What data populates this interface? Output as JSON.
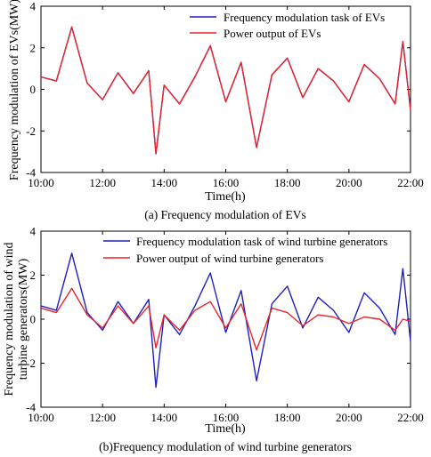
{
  "chart_data": [
    {
      "type": "line",
      "caption": "(a) Frequency modulation of EVs",
      "xlabel": "Time(h)",
      "ylabel": "Frequency modulation of EVs(MW)",
      "x_ticks": [
        "10:00",
        "12:00",
        "14:00",
        "16:00",
        "18:00",
        "20:00",
        "22:00"
      ],
      "xlim": [
        "10:00",
        "22:00"
      ],
      "ylim": [
        -4,
        4
      ],
      "y_ticks": [
        -4,
        -2,
        0,
        2,
        4
      ],
      "grid": false,
      "legend_position": "top-right",
      "series": [
        {
          "name": "Frequency modulation task of EVs",
          "color": "#1f1fbf",
          "x": [
            "10:00",
            "10:30",
            "11:00",
            "11:30",
            "12:00",
            "12:30",
            "13:00",
            "13:30",
            "13:44",
            "14:00",
            "14:30",
            "15:00",
            "15:30",
            "16:00",
            "16:30",
            "17:00",
            "17:30",
            "18:00",
            "18:30",
            "19:00",
            "19:30",
            "20:00",
            "20:30",
            "21:00",
            "21:30",
            "21:45",
            "22:00"
          ],
          "y": [
            0.6,
            0.4,
            3.0,
            0.3,
            -0.5,
            0.8,
            -0.2,
            0.9,
            -3.1,
            0.2,
            -0.7,
            0.6,
            2.1,
            -0.6,
            1.3,
            -2.8,
            0.7,
            1.5,
            -0.4,
            1.0,
            0.4,
            -0.6,
            1.2,
            0.5,
            -0.7,
            2.3,
            -1.0
          ]
        },
        {
          "name": "Power output of EVs",
          "color": "#e8262a",
          "x": [
            "10:00",
            "10:30",
            "11:00",
            "11:30",
            "12:00",
            "12:30",
            "13:00",
            "13:30",
            "13:44",
            "14:00",
            "14:30",
            "15:00",
            "15:30",
            "16:00",
            "16:30",
            "17:00",
            "17:30",
            "18:00",
            "18:30",
            "19:00",
            "19:30",
            "20:00",
            "20:30",
            "21:00",
            "21:30",
            "21:45",
            "22:00"
          ],
          "y": [
            0.6,
            0.4,
            3.0,
            0.3,
            -0.5,
            0.8,
            -0.2,
            0.9,
            -3.1,
            0.2,
            -0.7,
            0.6,
            2.1,
            -0.6,
            1.3,
            -2.8,
            0.7,
            1.5,
            -0.4,
            1.0,
            0.4,
            -0.6,
            1.2,
            0.5,
            -0.7,
            2.3,
            -1.0
          ]
        }
      ]
    },
    {
      "type": "line",
      "caption": "(b)Frequency modulation of wind turbine generators",
      "xlabel": "Time(h)",
      "ylabel": "Frequency modulation of wind turbine generators(MW)",
      "ylabel_lines": [
        "Frequency modulation of wind",
        "turbine generators(MW)"
      ],
      "x_ticks": [
        "10:00",
        "12:00",
        "14:00",
        "16:00",
        "18:00",
        "20:00",
        "22:00"
      ],
      "xlim": [
        "10:00",
        "22:00"
      ],
      "ylim": [
        -4,
        4
      ],
      "y_ticks": [
        -4,
        -2,
        0,
        2,
        4
      ],
      "grid": false,
      "legend_position": "top-right",
      "series": [
        {
          "name": "Frequency modulation task of wind turbine generators",
          "color": "#1f1fbf",
          "x": [
            "10:00",
            "10:30",
            "11:00",
            "11:30",
            "12:00",
            "12:30",
            "13:00",
            "13:30",
            "13:44",
            "14:00",
            "14:30",
            "15:00",
            "15:30",
            "16:00",
            "16:30",
            "17:00",
            "17:30",
            "18:00",
            "18:30",
            "19:00",
            "19:30",
            "20:00",
            "20:30",
            "21:00",
            "21:30",
            "21:45",
            "22:00"
          ],
          "y": [
            0.6,
            0.4,
            3.0,
            0.3,
            -0.5,
            0.8,
            -0.2,
            0.9,
            -3.1,
            0.2,
            -0.7,
            0.6,
            2.1,
            -0.6,
            1.3,
            -2.8,
            0.7,
            1.5,
            -0.4,
            1.0,
            0.4,
            -0.6,
            1.2,
            0.5,
            -0.7,
            2.3,
            -1.0
          ]
        },
        {
          "name": "Power output of wind turbine generators",
          "color": "#e8262a",
          "x": [
            "10:00",
            "10:30",
            "11:00",
            "11:30",
            "12:00",
            "12:30",
            "13:00",
            "13:30",
            "13:44",
            "14:00",
            "14:30",
            "15:00",
            "15:30",
            "16:00",
            "16:30",
            "17:00",
            "17:30",
            "18:00",
            "18:30",
            "19:00",
            "19:30",
            "20:00",
            "20:30",
            "21:00",
            "21:30",
            "21:45",
            "22:00"
          ],
          "y": [
            0.5,
            0.3,
            1.4,
            0.2,
            -0.4,
            0.6,
            -0.2,
            0.6,
            -1.3,
            0.2,
            -0.5,
            0.4,
            0.8,
            -0.4,
            0.7,
            -1.4,
            0.5,
            0.3,
            -0.3,
            0.2,
            0.1,
            -0.2,
            0.1,
            0.0,
            -0.5,
            0.0,
            -0.1
          ]
        }
      ]
    }
  ]
}
